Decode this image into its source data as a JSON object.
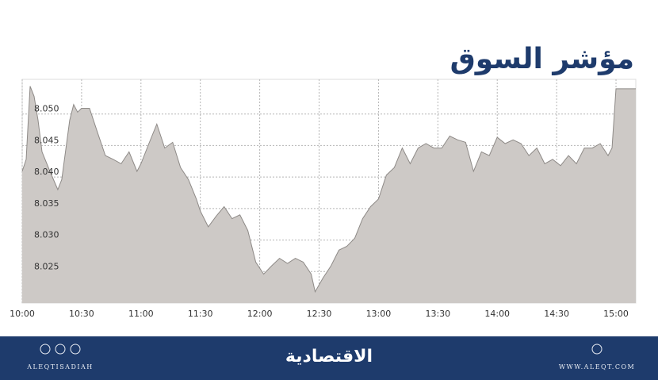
{
  "chart_data": {
    "type": "area",
    "title": "مؤشر السوق",
    "x": [
      "10:00",
      "10:02",
      "10:04",
      "10:06",
      "10:08",
      "10:10",
      "10:14",
      "10:18",
      "10:20",
      "10:24",
      "10:26",
      "10:28",
      "10:30",
      "10:34",
      "10:38",
      "10:42",
      "10:46",
      "10:50",
      "10:54",
      "10:58",
      "11:00",
      "11:04",
      "11:08",
      "11:12",
      "11:16",
      "11:20",
      "11:24",
      "11:28",
      "11:30",
      "11:34",
      "11:38",
      "11:42",
      "11:46",
      "11:50",
      "11:54",
      "11:58",
      "12:02",
      "12:06",
      "12:10",
      "12:14",
      "12:18",
      "12:22",
      "12:26",
      "12:28",
      "12:32",
      "12:36",
      "12:40",
      "12:44",
      "12:48",
      "12:52",
      "12:56",
      "13:00",
      "13:04",
      "13:08",
      "13:12",
      "13:16",
      "13:20",
      "13:24",
      "13:28",
      "13:32",
      "13:36",
      "13:40",
      "13:44",
      "13:48",
      "13:52",
      "13:56",
      "14:00",
      "14:04",
      "14:08",
      "14:12",
      "14:16",
      "14:20",
      "14:24",
      "14:28",
      "14:32",
      "14:36",
      "14:40",
      "14:44",
      "14:48",
      "14:52",
      "14:56",
      "14:58",
      "15:00",
      "15:10"
    ],
    "series": [
      {
        "color": "#cdc9c6",
        "line_color": "#8e8a87",
        "values": [
          8.0409,
          8.0428,
          8.0544,
          8.0528,
          8.049,
          8.044,
          8.0409,
          8.038,
          8.0396,
          8.049,
          8.0515,
          8.0503,
          8.0509,
          8.0509,
          8.0471,
          8.0434,
          8.0428,
          8.0421,
          8.044,
          8.0409,
          8.0421,
          8.0453,
          8.0484,
          8.0446,
          8.0455,
          8.0415,
          8.0396,
          8.0365,
          8.0346,
          8.0321,
          8.0338,
          8.0353,
          8.0334,
          8.034,
          8.0315,
          8.0265,
          8.0246,
          8.0259,
          8.0271,
          8.0263,
          8.0271,
          8.0265,
          8.0246,
          8.0218,
          8.024,
          8.0259,
          8.0284,
          8.029,
          8.0303,
          8.0334,
          8.0353,
          8.0365,
          8.0403,
          8.0415,
          8.0446,
          8.0421,
          8.0446,
          8.0453,
          8.0446,
          8.0446,
          8.0465,
          8.0459,
          8.0455,
          8.0409,
          8.044,
          8.0434,
          8.0463,
          8.0453,
          8.0459,
          8.0453,
          8.0434,
          8.0446,
          8.0421,
          8.0428,
          8.0418,
          8.0434,
          8.0421,
          8.0446,
          8.0446,
          8.0453,
          8.0434,
          8.0446,
          8.054,
          8.054
        ]
      }
    ],
    "xlim": [
      "10:00",
      "15:10"
    ],
    "xticks": [
      "10:00",
      "10:30",
      "11:00",
      "11:30",
      "12:00",
      "12:30",
      "13:00",
      "13:30",
      "14:00",
      "14:30",
      "15:00"
    ],
    "ylim": [
      8.02,
      8.0555
    ],
    "yticks": [
      {
        "value": 8.025,
        "label": "8.025"
      },
      {
        "value": 8.03,
        "label": "8.030"
      },
      8.035,
      {
        "value": 8.04,
        "label": "8.040"
      },
      8.045,
      {
        "value": 8.05,
        "label": "8.050"
      }
    ],
    "grid": true
  },
  "footer": {
    "brand": "الاقتصادية",
    "handle": "ALEQTISADIAH",
    "website": "WWW.ALEQT.COM"
  }
}
